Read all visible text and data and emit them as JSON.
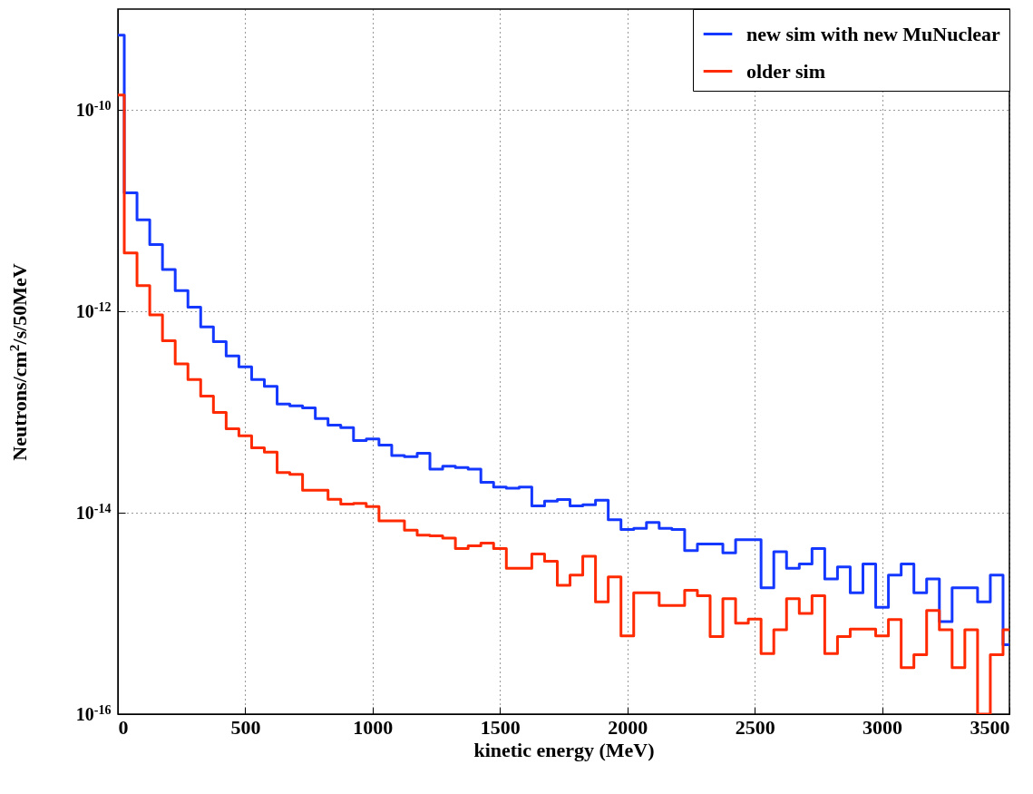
{
  "chart_data": {
    "type": "step",
    "xlabel": "kinetic energy (MeV)",
    "ylabel": "Neutrons/cm$^{2}$/s/50MeV",
    "x": [
      0,
      50,
      100,
      150,
      200,
      250,
      300,
      350,
      400,
      450,
      500,
      550,
      600,
      650,
      700,
      750,
      800,
      850,
      900,
      950,
      1000,
      1050,
      1100,
      1150,
      1200,
      1250,
      1300,
      1350,
      1400,
      1450,
      1500,
      1550,
      1600,
      1650,
      1700,
      1750,
      1800,
      1850,
      1900,
      1950,
      2000,
      2050,
      2100,
      2150,
      2200,
      2250,
      2300,
      2350,
      2400,
      2450,
      2500,
      2550,
      2600,
      2650,
      2700,
      2750,
      2800,
      2850,
      2900,
      2950,
      3000,
      3050,
      3100,
      3150,
      3200,
      3250,
      3300,
      3350,
      3400,
      3450,
      3500
    ],
    "series": [
      {
        "name": "new sim with new MuNuclear",
        "color": "#1438ff",
        "values": [
          5.5e-10,
          1.5e-11,
          8.1e-12,
          4.6e-12,
          2.6e-12,
          1.6e-12,
          1.1e-12,
          7e-13,
          5e-13,
          3.6e-13,
          2.8e-13,
          2.1e-13,
          1.8e-13,
          1.2e-13,
          1.15e-13,
          1.1e-13,
          8.6e-14,
          7.4e-14,
          7e-14,
          5.2e-14,
          5.4e-14,
          4.7e-14,
          3.7e-14,
          3.6e-14,
          3.9e-14,
          2.7e-14,
          2.9e-14,
          2.8e-14,
          2.7e-14,
          2e-14,
          1.8e-14,
          1.75e-14,
          1.8e-14,
          1.17e-14,
          1.3e-14,
          1.35e-14,
          1.17e-14,
          1.2e-14,
          1.33e-14,
          8.5e-15,
          6.8e-15,
          7e-15,
          8e-15,
          7e-15,
          6.8e-15,
          4.2e-15,
          4.9e-15,
          4.9e-15,
          4e-15,
          5.4e-15,
          5.4e-15,
          1.8e-15,
          4.1e-15,
          2.8e-15,
          3.1e-15,
          4.4e-15,
          2.2e-15,
          2.9e-15,
          1.6e-15,
          3.1e-15,
          1.15e-15,
          2.4e-15,
          3.1e-15,
          1.6e-15,
          2.2e-15,
          8.3e-16,
          1.8e-15,
          1.8e-15,
          1.3e-15,
          2.4e-15,
          4.9e-16
        ]
      },
      {
        "name": "older sim",
        "color": "#ff2a00",
        "values": [
          1.4e-10,
          3.8e-12,
          1.8e-12,
          9.2e-13,
          5.1e-13,
          3e-13,
          2.1e-13,
          1.44e-13,
          9.9e-14,
          6.8e-14,
          5.8e-14,
          4.4e-14,
          4e-14,
          2.5e-14,
          2.4e-14,
          1.67e-14,
          1.67e-14,
          1.36e-14,
          1.22e-14,
          1.24e-14,
          1.15e-14,
          8.3e-15,
          8.3e-15,
          6.7e-15,
          6e-15,
          5.9e-15,
          5.6e-15,
          4.4e-15,
          4.7e-15,
          5e-15,
          4.4e-15,
          2.8e-15,
          2.8e-15,
          3.9e-15,
          3.3e-15,
          1.9e-15,
          2.4e-15,
          3.7e-15,
          1.3e-15,
          2.3e-15,
          6e-16,
          1.6e-15,
          1.6e-15,
          1.2e-15,
          1.2e-15,
          1.7e-15,
          1.5e-15,
          5.9e-16,
          1.4e-15,
          8e-16,
          8.8e-16,
          4e-16,
          6.9e-16,
          1.4e-15,
          1e-15,
          1.5e-15,
          4e-16,
          5.9e-16,
          7e-16,
          7e-16,
          6e-16,
          8.7e-16,
          2.9e-16,
          3.9e-16,
          1.07e-15,
          6.9e-16,
          2.9e-16,
          6.9e-16,
          1e-16,
          3.9e-16,
          6.9e-16
        ]
      }
    ],
    "xlim": [
      0,
      3500
    ],
    "xticks": [
      0,
      500,
      1000,
      1500,
      2000,
      2500,
      3000,
      3500
    ],
    "ylim": [
      1e-16,
      1e-09
    ],
    "yticks": [
      {
        "value": 1e-16,
        "label": "10$^{-16}$"
      },
      {
        "value": 1e-14,
        "label": "10$^{-14}$"
      },
      {
        "value": 1e-12,
        "label": "10$^{-12}$"
      },
      {
        "value": 1e-10,
        "label": "10$^{-10}$"
      }
    ],
    "log": true,
    "grid": true,
    "legend": "top right",
    "line_style": "solid"
  }
}
